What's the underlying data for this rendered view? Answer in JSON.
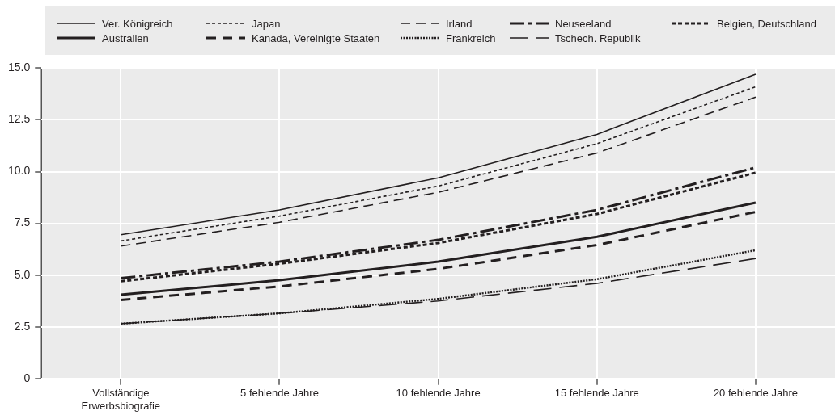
{
  "chart_data": {
    "type": "line",
    "categories": [
      "Vollständige Erwerbsbiografie",
      "5 fehlende Jahre",
      "10 fehlende Jahre",
      "15 fehlende Jahre",
      "20 fehlende Jahre"
    ],
    "series": [
      {
        "name": "Ver. Königreich",
        "color": "#231f20",
        "line_style": "solid",
        "values": [
          6.95,
          8.15,
          9.7,
          11.8,
          14.7
        ]
      },
      {
        "name": "Japan",
        "color": "#231f20",
        "line_style": "dashed",
        "values": [
          6.65,
          7.85,
          9.3,
          11.35,
          14.1
        ]
      },
      {
        "name": "Irland",
        "color": "#231f20",
        "line_style": "dashed",
        "values": [
          6.4,
          7.55,
          9.0,
          10.9,
          13.6
        ]
      },
      {
        "name": "Neuseeland",
        "color": "#231f20",
        "line_style": "dashed",
        "values": [
          4.85,
          5.65,
          6.7,
          8.15,
          10.2
        ]
      },
      {
        "name": "Belgien, Deutschland",
        "color": "#231f20",
        "line_style": "dotted",
        "values": [
          4.7,
          5.55,
          6.55,
          7.95,
          9.95
        ]
      },
      {
        "name": "Australien",
        "color": "#231f20",
        "line_style": "solid",
        "values": [
          4.05,
          4.75,
          5.65,
          6.85,
          8.5
        ]
      },
      {
        "name": "Kanada, Vereinigte Staaten",
        "color": "#231f20",
        "line_style": "dashed",
        "values": [
          3.8,
          4.45,
          5.3,
          6.45,
          8.05
        ]
      },
      {
        "name": "Frankreich",
        "color": "#231f20",
        "line_style": "dotted",
        "values": [
          2.65,
          3.15,
          3.85,
          4.8,
          6.2
        ]
      },
      {
        "name": "Tschech. Republik",
        "color": "#231f20",
        "line_style": "dashed",
        "values": [
          2.65,
          3.15,
          3.75,
          4.6,
          5.8
        ]
      }
    ],
    "ylim": [
      0,
      15
    ],
    "yticks": [
      0,
      2.5,
      {
        "value": 5,
        "label": "5.0"
      },
      7.5,
      {
        "value": 10,
        "label": "10.0"
      },
      12.5,
      {
        "value": 15,
        "label": "15.0"
      }
    ],
    "grid": true,
    "legend": "top",
    "marker": "none"
  }
}
